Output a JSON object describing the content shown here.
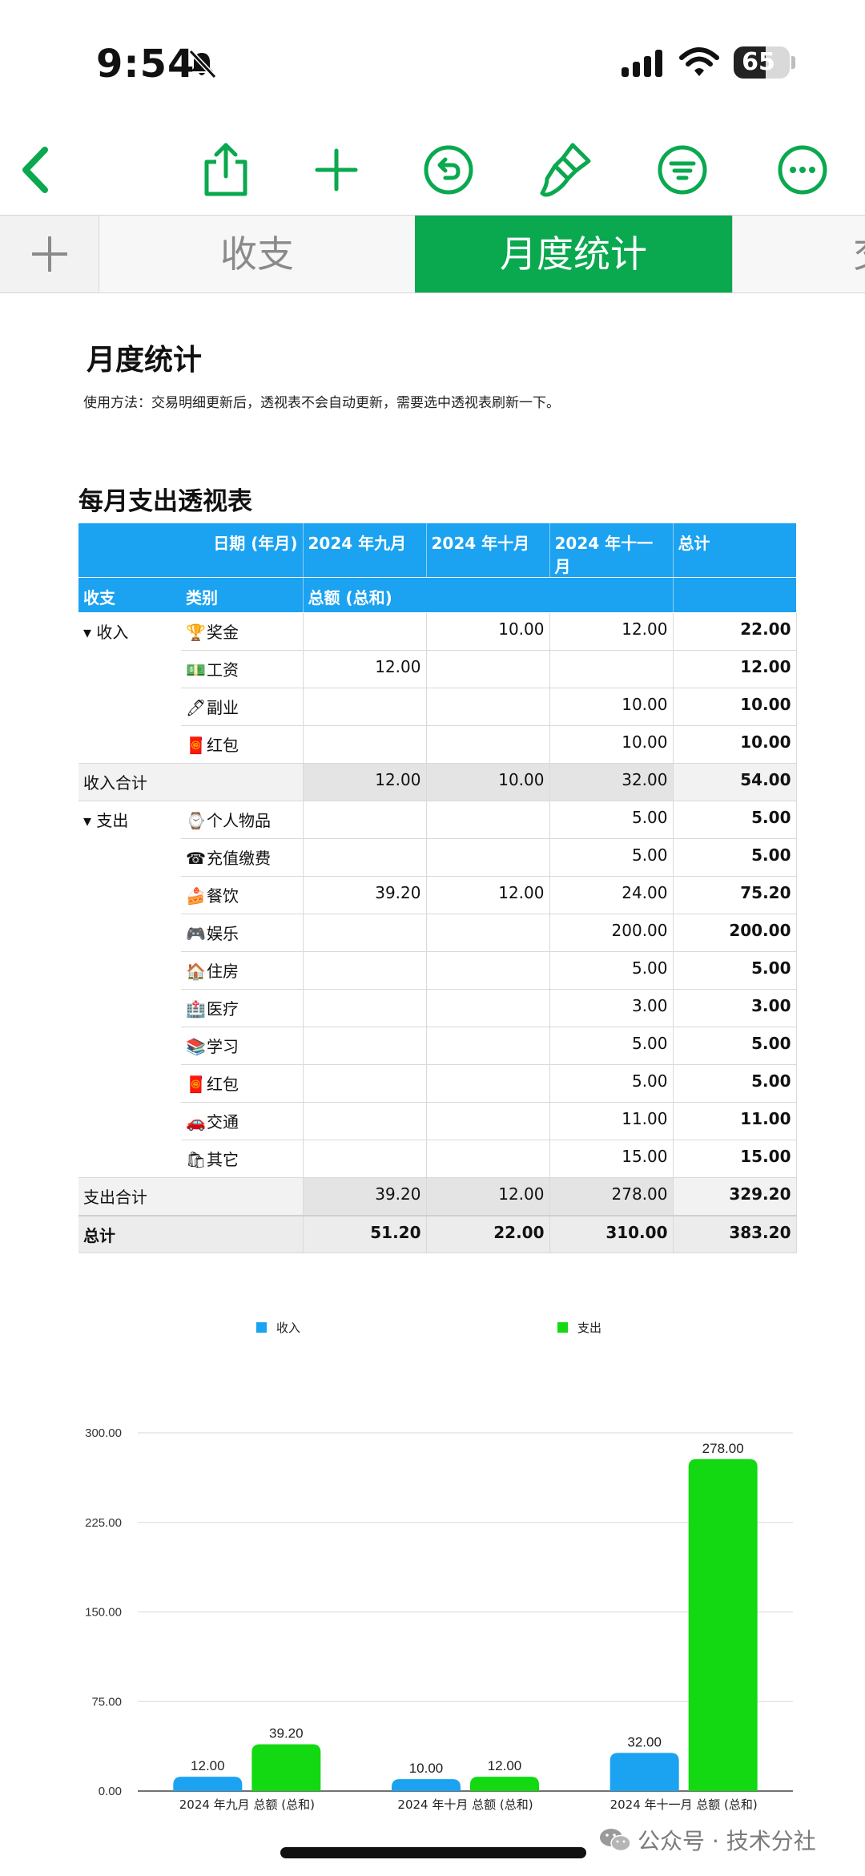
{
  "status": {
    "time": "9:54",
    "battery": "65",
    "battery_level": 0.65
  },
  "tabs": {
    "items": [
      "收支",
      "月度统计",
      "交"
    ],
    "active": "月度统计"
  },
  "page": {
    "title": "月度统计",
    "usage": "使用方法：交易明细更新后，透视表不会自动更新，需要选中透视表刷新一下。",
    "table_title": "每月支出透视表"
  },
  "pivot": {
    "header": {
      "date_label": "日期 (年月)",
      "months": [
        "2024 年九月",
        "2024 年十月",
        "2024 年十一月"
      ],
      "total": "总计"
    },
    "subheader": {
      "col1": "收支",
      "col2": "类别",
      "measure": "总额 (总和)"
    },
    "income": {
      "label": "▾ 收入",
      "rows": [
        {
          "icon": "🏆",
          "name": "奖金",
          "m1": "",
          "m2": "10.00",
          "m3": "12.00",
          "total": "22.00"
        },
        {
          "icon": "💵",
          "name": "工资",
          "m1": "12.00",
          "m2": "",
          "m3": "",
          "total": "12.00"
        },
        {
          "icon": "🖊",
          "name": "副业",
          "m1": "",
          "m2": "",
          "m3": "10.00",
          "total": "10.00"
        },
        {
          "icon": "🧧",
          "name": "红包",
          "m1": "",
          "m2": "",
          "m3": "10.00",
          "total": "10.00"
        }
      ],
      "sum": {
        "label": "收入合计",
        "m1": "12.00",
        "m2": "10.00",
        "m3": "32.00",
        "total": "54.00"
      }
    },
    "expense": {
      "label": "▾ 支出",
      "rows": [
        {
          "icon": "⌚",
          "name": "个人物品",
          "m1": "",
          "m2": "",
          "m3": "5.00",
          "total": "5.00"
        },
        {
          "icon": "☎",
          "name": "充值缴费",
          "m1": "",
          "m2": "",
          "m3": "5.00",
          "total": "5.00"
        },
        {
          "icon": "🍰",
          "name": "餐饮",
          "m1": "39.20",
          "m2": "12.00",
          "m3": "24.00",
          "total": "75.20"
        },
        {
          "icon": "🎮",
          "name": "娱乐",
          "m1": "",
          "m2": "",
          "m3": "200.00",
          "total": "200.00"
        },
        {
          "icon": "🏠",
          "name": "住房",
          "m1": "",
          "m2": "",
          "m3": "5.00",
          "total": "5.00"
        },
        {
          "icon": "🏥",
          "name": "医疗",
          "m1": "",
          "m2": "",
          "m3": "3.00",
          "total": "3.00"
        },
        {
          "icon": "📚",
          "name": "学习",
          "m1": "",
          "m2": "",
          "m3": "5.00",
          "total": "5.00"
        },
        {
          "icon": "🧧",
          "name": "红包",
          "m1": "",
          "m2": "",
          "m3": "5.00",
          "total": "5.00"
        },
        {
          "icon": "🚗",
          "name": "交通",
          "m1": "",
          "m2": "",
          "m3": "11.00",
          "total": "11.00"
        },
        {
          "icon": "🛍",
          "name": "其它",
          "m1": "",
          "m2": "",
          "m3": "15.00",
          "total": "15.00"
        }
      ],
      "sum": {
        "label": "支出合计",
        "m1": "39.20",
        "m2": "12.00",
        "m3": "278.00",
        "total": "329.20"
      }
    },
    "grand_total": {
      "label": "总计",
      "m1": "51.20",
      "m2": "22.00",
      "m3": "310.00",
      "total": "383.20"
    }
  },
  "chart_data": {
    "type": "bar",
    "categories": [
      "2024 年九月  总额 (总和)",
      "2024 年十月  总额 (总和)",
      "2024 年十一月  总额 (总和)"
    ],
    "series": [
      {
        "name": "收入",
        "values": [
          12.0,
          10.0,
          32.0
        ],
        "color": "#1ba2f1"
      },
      {
        "name": "支出",
        "values": [
          39.2,
          12.0,
          278.0
        ],
        "color": "#12d912"
      }
    ],
    "y_ticks": [
      "0.00",
      "75.00",
      "150.00",
      "225.00",
      "300.00"
    ],
    "ylim": [
      0,
      300
    ],
    "grid": true,
    "legend_position": "top"
  },
  "watermark": "公众号 · 技术分社",
  "colors": {
    "accent": "#0aa84f",
    "header_blue": "#1ba2f1",
    "expense_green": "#12d912"
  }
}
